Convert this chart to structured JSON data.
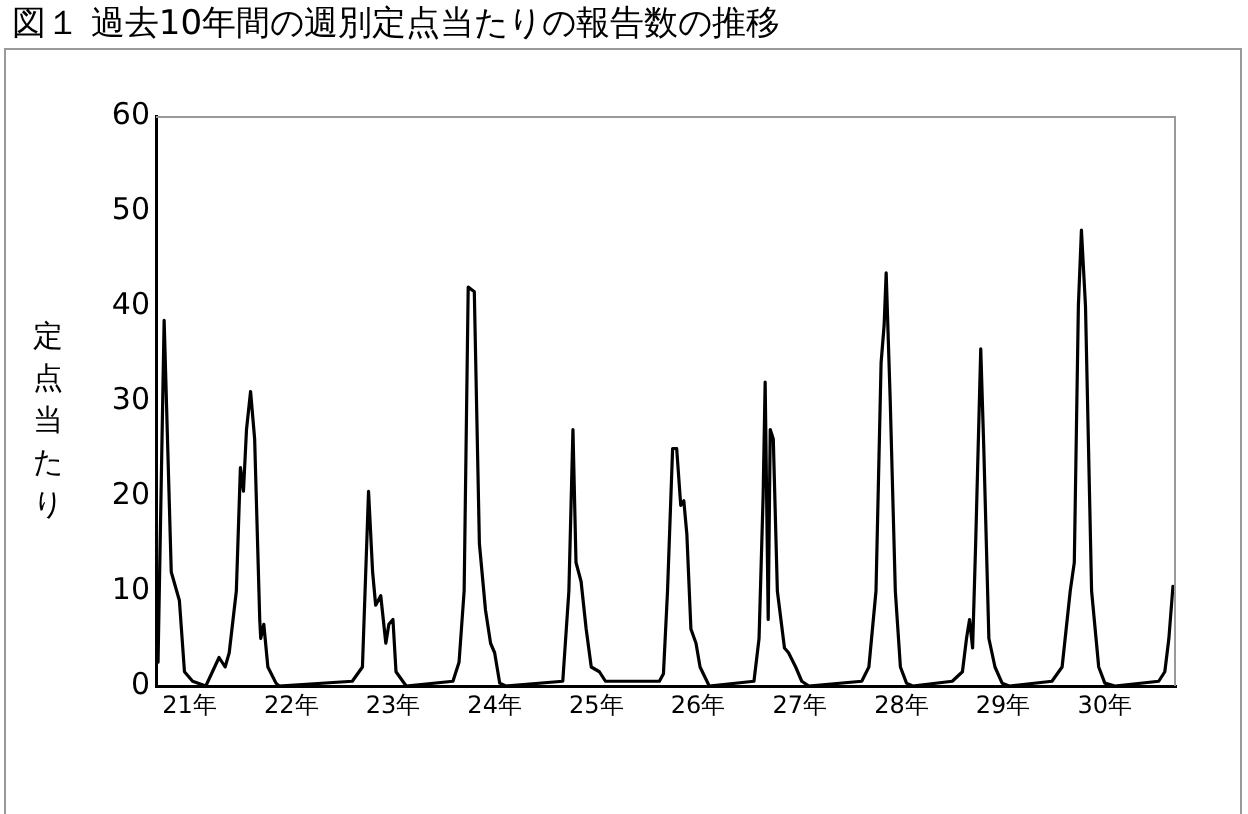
{
  "chart_data": {
    "type": "line",
    "title": "図１ 過去10年間の週別定点当たりの報告数の推移",
    "ylabel": "定点当たり",
    "x": [
      20.69,
      20.75,
      20.82,
      20.9,
      20.95,
      21.03,
      21.16,
      21.29,
      21.35,
      21.39,
      21.46,
      21.5,
      21.53,
      21.56,
      21.6,
      21.64,
      21.69,
      21.7,
      21.73,
      21.77,
      21.85,
      21.88,
      22.6,
      22.7,
      22.76,
      22.8,
      22.83,
      22.88,
      22.93,
      22.96,
      23.0,
      23.03,
      23.13,
      23.59,
      23.65,
      23.7,
      23.74,
      23.8,
      23.85,
      23.91,
      23.96,
      24.0,
      24.05,
      24.11,
      24.67,
      24.73,
      24.77,
      24.8,
      24.85,
      24.9,
      24.95,
      25.03,
      25.09,
      25.62,
      25.66,
      25.7,
      25.75,
      25.79,
      25.83,
      25.86,
      25.89,
      25.93,
      25.98,
      26.02,
      26.11,
      26.55,
      26.6,
      26.64,
      26.66,
      26.69,
      26.71,
      26.74,
      26.78,
      26.85,
      26.89,
      26.96,
      27.02,
      27.09,
      27.61,
      27.68,
      27.75,
      27.8,
      27.83,
      27.85,
      27.89,
      27.94,
      27.99,
      28.05,
      28.11,
      28.5,
      28.6,
      28.64,
      28.67,
      28.7,
      28.73,
      28.78,
      28.81,
      28.86,
      28.92,
      28.99,
      29.06,
      29.48,
      29.58,
      29.66,
      29.7,
      29.74,
      29.77,
      29.81,
      29.87,
      29.94,
      30.0,
      30.1,
      30.53,
      30.59,
      30.63,
      30.67
    ],
    "series": [
      {
        "color": "#000000",
        "values": [
          2.5,
          38.5,
          12,
          9,
          1.5,
          0.5,
          0,
          3,
          2,
          3.5,
          10,
          23,
          20.5,
          27,
          31,
          26,
          7,
          5,
          6.5,
          2,
          0.3,
          0,
          0.5,
          2,
          20.5,
          12,
          8.5,
          9.5,
          4.5,
          6.5,
          7,
          1.5,
          0,
          0.5,
          2.5,
          10,
          42,
          41.5,
          15,
          8,
          4.5,
          3.5,
          0.3,
          0,
          0.5,
          10,
          27,
          13,
          11,
          6,
          2,
          1.5,
          0.5,
          0.5,
          1.3,
          10,
          25,
          25,
          19,
          19.5,
          16,
          6,
          4.5,
          2,
          0,
          0.5,
          5,
          20,
          32,
          7,
          27,
          26,
          10,
          4,
          3.5,
          2,
          0.5,
          0,
          0.5,
          2,
          10,
          34,
          38,
          43.5,
          30,
          10,
          2,
          0.3,
          0,
          0.5,
          1.5,
          5,
          7,
          4,
          15,
          35.5,
          25,
          5,
          2,
          0.3,
          0,
          0.5,
          2,
          10,
          13,
          40,
          48,
          40,
          10,
          2,
          0.3,
          0,
          0.5,
          1.5,
          5,
          10.5
        ]
      }
    ],
    "xlim": [
      20.67,
      30.7
    ],
    "xticks": [
      {
        "value": 21,
        "label": "21年"
      },
      {
        "value": 22,
        "label": "22年"
      },
      {
        "value": 23,
        "label": "23年"
      },
      {
        "value": 24,
        "label": "24年"
      },
      {
        "value": 25,
        "label": "25年"
      },
      {
        "value": 26,
        "label": "26年"
      },
      {
        "value": 27,
        "label": "27年"
      },
      {
        "value": 28,
        "label": "28年"
      },
      {
        "value": 29,
        "label": "29年"
      },
      {
        "value": 30,
        "label": "30年"
      }
    ],
    "ylim": [
      0,
      60
    ],
    "yticks": [
      0,
      10,
      20,
      30,
      40,
      50,
      60
    ],
    "grid": false,
    "legend": false,
    "marker": "none",
    "line_style": "solid"
  }
}
